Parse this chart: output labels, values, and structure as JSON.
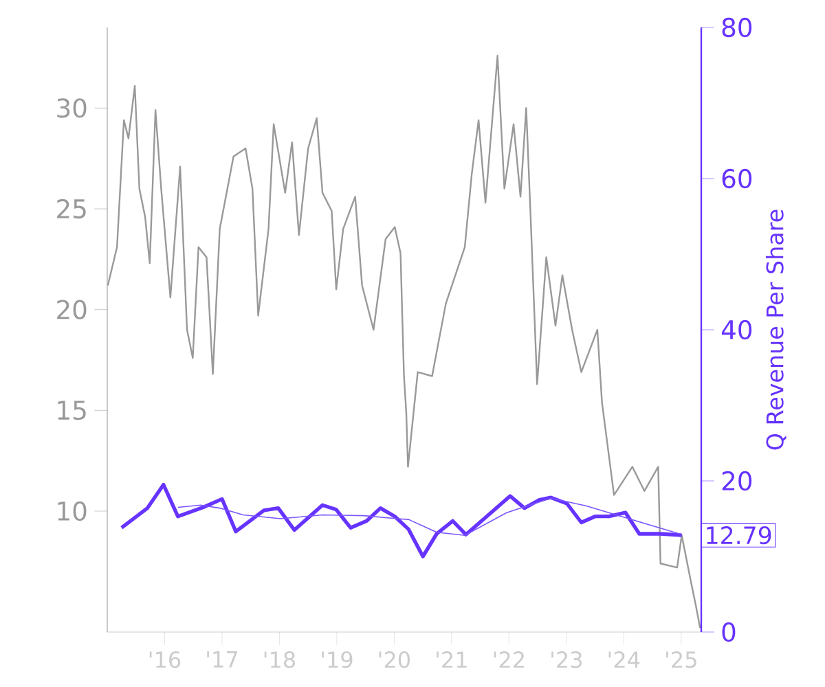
{
  "chart_data": {
    "type": "line",
    "y2label": "Q Revenue Per Share",
    "xlim": [
      2015.0,
      2025.35
    ],
    "ylim": [
      4,
      34
    ],
    "y2lim": [
      0,
      80
    ],
    "xticks": [
      {
        "value": 2016,
        "label": "'16"
      },
      {
        "value": 2017,
        "label": "'17"
      },
      {
        "value": 2018,
        "label": "'18"
      },
      {
        "value": 2019,
        "label": "'19"
      },
      {
        "value": 2020,
        "label": "'20"
      },
      {
        "value": 2021,
        "label": "'21"
      },
      {
        "value": 2022,
        "label": "'22"
      },
      {
        "value": 2023,
        "label": "'23"
      },
      {
        "value": 2024,
        "label": "'24"
      },
      {
        "value": 2025,
        "label": "'25"
      }
    ],
    "yticks": [
      10,
      15,
      20,
      25,
      30
    ],
    "y2ticks": [
      0,
      20,
      40,
      60,
      80
    ],
    "grid": false,
    "marker": "none",
    "line_style": "solid",
    "annotations": [
      "12.79"
    ],
    "series": [
      {
        "color": "#999999",
        "axis": "y",
        "x": [
          2015.01,
          2015.17,
          2015.29,
          2015.37,
          2015.48,
          2015.56,
          2015.66,
          2015.74,
          2015.84,
          2015.94,
          2016.1,
          2016.27,
          2016.39,
          2016.49,
          2016.59,
          2016.73,
          2016.84,
          2016.96,
          2017.2,
          2017.41,
          2017.53,
          2017.63,
          2017.81,
          2017.9,
          2018.1,
          2018.22,
          2018.34,
          2018.5,
          2018.65,
          2018.75,
          2018.91,
          2018.99,
          2019.11,
          2019.32,
          2019.44,
          2019.64,
          2019.85,
          2020.01,
          2020.11,
          2020.17,
          2020.21,
          2020.24,
          2020.41,
          2020.66,
          2020.9,
          2021.23,
          2021.35,
          2021.47,
          2021.59,
          2021.8,
          2021.92,
          2022.08,
          2022.2,
          2022.3,
          2022.37,
          2022.49,
          2022.65,
          2022.81,
          2022.93,
          2023.1,
          2023.26,
          2023.54,
          2023.62,
          2023.83,
          2024.15,
          2024.36,
          2024.6,
          2024.64,
          2024.93,
          2025.01,
          2025.17,
          2025.25,
          2025.33
        ],
        "values": [
          21.2,
          23.1,
          29.4,
          28.5,
          31.1,
          26.0,
          24.6,
          22.3,
          29.9,
          26.0,
          20.6,
          27.1,
          19.0,
          17.6,
          23.1,
          22.6,
          16.8,
          24.0,
          27.6,
          28.0,
          26.0,
          19.7,
          24.0,
          29.2,
          25.8,
          28.3,
          23.7,
          28.0,
          29.5,
          25.8,
          24.9,
          21.0,
          24.0,
          25.6,
          21.2,
          19.0,
          23.5,
          24.1,
          22.8,
          16.7,
          14.9,
          12.2,
          16.9,
          16.7,
          20.3,
          23.1,
          26.7,
          29.4,
          25.3,
          32.6,
          26.0,
          29.2,
          25.6,
          30.0,
          25.1,
          16.3,
          22.6,
          19.2,
          21.7,
          19.0,
          16.9,
          19.0,
          15.4,
          10.8,
          12.2,
          11.0,
          12.2,
          7.4,
          7.2,
          8.8,
          6.5,
          5.4,
          4.2
        ]
      },
      {
        "color": "#6633ff",
        "axis": "y2",
        "x": [
          2015.25,
          2015.7,
          2015.98,
          2016.23,
          2016.67,
          2017.0,
          2017.24,
          2017.73,
          2017.98,
          2018.26,
          2018.75,
          2018.99,
          2019.24,
          2019.52,
          2019.76,
          2020.01,
          2020.25,
          2020.5,
          2020.74,
          2021.02,
          2021.25,
          2022.02,
          2022.27,
          2022.53,
          2022.73,
          2023.01,
          2023.26,
          2023.5,
          2023.74,
          2024.03,
          2024.27,
          2024.64,
          2025.01
        ],
        "values": [
          13.8,
          16.4,
          19.5,
          15.3,
          16.5,
          17.6,
          13.3,
          16.1,
          16.4,
          13.5,
          16.8,
          16.2,
          13.8,
          14.7,
          16.4,
          15.3,
          13.6,
          10.0,
          13.0,
          14.7,
          12.9,
          18.0,
          16.4,
          17.5,
          17.8,
          17.0,
          14.5,
          15.3,
          15.3,
          15.8,
          13.0,
          13.0,
          12.8
        ]
      },
      {
        "color": "#7a55ff",
        "axis": "y2",
        "x": [
          2016.23,
          2016.63,
          2016.96,
          2017.37,
          2018.02,
          2018.75,
          2019.48,
          2020.05,
          2020.25,
          2020.74,
          2021.23,
          2021.96,
          2022.73,
          2023.34,
          2025.01
        ],
        "values": [
          16.5,
          16.8,
          16.4,
          15.5,
          15.0,
          15.5,
          15.4,
          15.0,
          14.9,
          13.2,
          12.8,
          15.8,
          17.7,
          16.7,
          12.9
        ]
      }
    ]
  }
}
